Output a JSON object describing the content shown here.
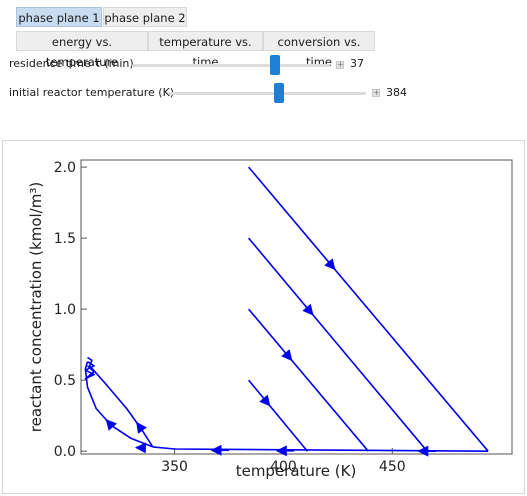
{
  "tabs_row1": [
    {
      "label": "phase plane 1",
      "active": true
    },
    {
      "label": "phase plane 2",
      "active": false
    }
  ],
  "tabs_row2": [
    {
      "label": "energy vs. temperature"
    },
    {
      "label": "temperature vs. time"
    },
    {
      "label": "conversion vs. time"
    }
  ],
  "controls": {
    "residence_time": {
      "label": "residence time τ (min)",
      "value": "37",
      "fraction": 0.71
    },
    "initial_temp": {
      "label": "initial reactor temperature (K)",
      "value": "384",
      "fraction": 0.55
    }
  },
  "chart_data": {
    "type": "line",
    "xlabel": "temperature (K)",
    "ylabel": "reactant concentration (kmol/m³)",
    "xlim": [
      307,
      505
    ],
    "ylim": [
      -0.02,
      2.05
    ],
    "xticks": [
      "350",
      "400",
      "450"
    ],
    "yticks": [
      "0.0",
      "0.5",
      "1.0",
      "1.5",
      "2.0"
    ],
    "color": "#0000ee",
    "series": [
      {
        "points": [
          [
            384,
            2.0
          ],
          [
            494,
            0.0
          ]
        ]
      },
      {
        "points": [
          [
            384,
            1.5
          ],
          [
            466,
            0.0
          ]
        ]
      },
      {
        "points": [
          [
            384,
            1.0
          ],
          [
            439,
            0.0
          ]
        ]
      },
      {
        "points": [
          [
            384,
            0.5
          ],
          [
            411,
            0.0
          ]
        ]
      },
      {
        "points": [
          [
            494,
            0.0
          ],
          [
            350,
            0.015
          ],
          [
            340,
            0.03
          ]
        ]
      },
      {
        "points": [
          [
            340,
            0.03
          ],
          [
            335,
            0.15
          ],
          [
            328,
            0.3
          ],
          [
            318,
            0.48
          ],
          [
            311,
            0.6
          ],
          [
            312,
            0.64
          ],
          [
            310,
            0.66
          ]
        ]
      },
      {
        "points": [
          [
            340,
            0.03
          ],
          [
            330,
            0.09
          ],
          [
            321,
            0.18
          ],
          [
            314,
            0.3
          ],
          [
            310,
            0.45
          ],
          [
            309,
            0.58
          ],
          [
            310,
            0.63
          ]
        ]
      },
      {
        "points": [
          [
            310,
            0.63
          ],
          [
            313,
            0.6
          ],
          [
            309,
            0.57
          ],
          [
            313,
            0.54
          ],
          [
            309,
            0.51
          ],
          [
            313,
            0.56
          ],
          [
            310,
            0.6
          ]
        ]
      }
    ]
  }
}
